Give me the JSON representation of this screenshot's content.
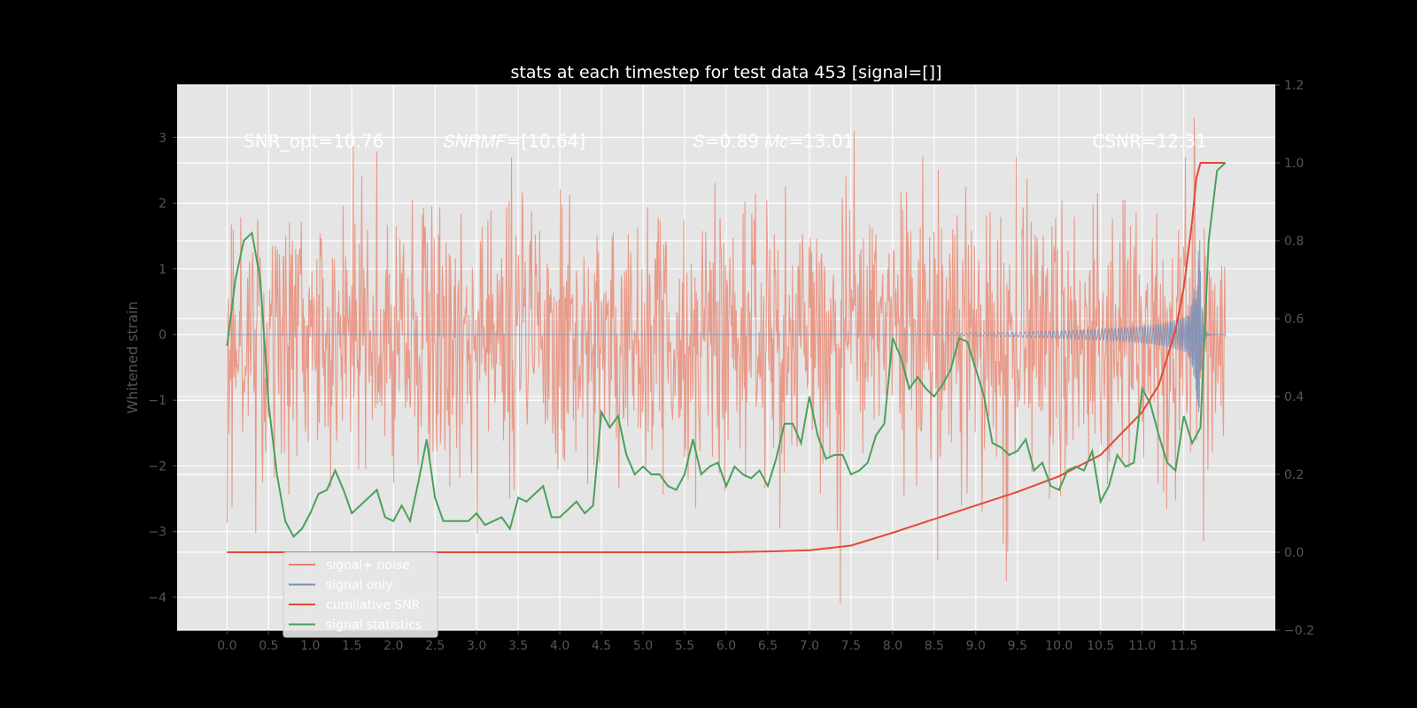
{
  "chart_data": {
    "type": "line",
    "title": "stats at each timestep for test data 453 [signal=[]]",
    "xlabel": "",
    "ylabel": "Whitened strain",
    "y2label": "",
    "xlim": [
      -0.6,
      12.6
    ],
    "ylim": [
      -4.5,
      3.8
    ],
    "y2lim": [
      -0.2,
      1.2
    ],
    "x_ticks": [
      0.0,
      0.5,
      1.0,
      1.5,
      2.0,
      2.5,
      3.0,
      3.5,
      4.0,
      4.5,
      5.0,
      5.5,
      6.0,
      6.5,
      7.0,
      7.5,
      8.0,
      8.5,
      9.0,
      9.5,
      10.0,
      10.5,
      11.0,
      11.5
    ],
    "x_tick_labels": [
      "0.0",
      "0.5",
      "1.0",
      "1.5",
      "2.0",
      "2.5",
      "3.0",
      "3.5",
      "4.0",
      "4.5",
      "5.0",
      "5.5",
      "6.0",
      "6.5",
      "7.0",
      "7.5",
      "8.0",
      "8.5",
      "9.0",
      "9.5",
      "10.0",
      "10.5",
      "11.0",
      "11.5"
    ],
    "y_ticks": [
      3,
      2,
      1,
      0,
      -1,
      -2,
      -3,
      -4
    ],
    "y_tick_labels": [
      "3",
      "2",
      "1",
      "0",
      "−1",
      "−2",
      "−3",
      "−4"
    ],
    "y2_ticks": [
      1.2,
      1.0,
      0.8,
      0.6,
      0.4,
      0.2,
      0.0,
      -0.2
    ],
    "y2_tick_labels": [
      "1.2",
      "1.0",
      "0.8",
      "0.6",
      "0.4",
      "0.2",
      "0.0",
      "−0.2"
    ],
    "grid": true,
    "legend_position": "lower-left",
    "annotations": [
      {
        "text": "SNR_opt=10.76",
        "x": 0.2,
        "y": 2.85
      },
      {
        "text": "𝑆𝑁𝑅𝑀𝐹=[10.64]",
        "x": 2.6,
        "y": 2.85
      },
      {
        "text": "𝑆=0.89   𝑀𝑐=13.01",
        "x": 5.6,
        "y": 2.85
      },
      {
        "text": "CSNR=12.31",
        "x": 10.4,
        "y": 2.85
      }
    ],
    "series": [
      {
        "name": "signal+ noise",
        "axis": "left",
        "color": "#e8806a",
        "style": "noise",
        "x_range": [
          0.0,
          12.0
        ],
        "typical_amplitude": 1.0,
        "max_value": 3.6,
        "min_value": -4.1
      },
      {
        "name": "signal only",
        "axis": "left",
        "color": "#7a8fb8",
        "style": "chirp",
        "x_range": [
          0.0,
          12.0
        ],
        "merger_time": 11.7,
        "peak_amplitude": 1.6
      },
      {
        "name": "cumilative SNR",
        "axis": "right",
        "color": "#e24a33",
        "style": "line",
        "x": [
          0.0,
          1.0,
          2.0,
          3.0,
          4.0,
          5.0,
          6.0,
          6.5,
          7.0,
          7.5,
          8.0,
          8.5,
          9.0,
          9.5,
          10.0,
          10.5,
          11.0,
          11.2,
          11.4,
          11.5,
          11.6,
          11.65,
          11.7,
          12.0
        ],
        "values": [
          0.0,
          0.0,
          0.0,
          0.0,
          0.0,
          0.0,
          0.0,
          0.002,
          0.005,
          0.017,
          0.05,
          0.085,
          0.12,
          0.155,
          0.195,
          0.25,
          0.36,
          0.43,
          0.57,
          0.68,
          0.85,
          0.96,
          1.0,
          1.0
        ]
      },
      {
        "name": "signal statistics",
        "axis": "right",
        "color": "#4aa05a",
        "style": "line",
        "x": [
          0.0,
          0.1,
          0.2,
          0.3,
          0.4,
          0.5,
          0.6,
          0.7,
          0.8,
          0.9,
          1.0,
          1.1,
          1.2,
          1.3,
          1.4,
          1.5,
          1.6,
          1.7,
          1.8,
          1.9,
          2.0,
          2.1,
          2.2,
          2.3,
          2.4,
          2.5,
          2.6,
          2.7,
          2.8,
          2.9,
          3.0,
          3.1,
          3.2,
          3.3,
          3.4,
          3.5,
          3.6,
          3.7,
          3.8,
          3.9,
          4.0,
          4.1,
          4.2,
          4.3,
          4.4,
          4.5,
          4.6,
          4.7,
          4.8,
          4.9,
          5.0,
          5.1,
          5.2,
          5.3,
          5.4,
          5.5,
          5.6,
          5.7,
          5.8,
          5.9,
          6.0,
          6.1,
          6.2,
          6.3,
          6.4,
          6.5,
          6.6,
          6.7,
          6.8,
          6.9,
          7.0,
          7.1,
          7.2,
          7.3,
          7.4,
          7.5,
          7.6,
          7.7,
          7.8,
          7.9,
          8.0,
          8.1,
          8.2,
          8.3,
          8.4,
          8.5,
          8.6,
          8.7,
          8.8,
          8.9,
          9.0,
          9.1,
          9.2,
          9.3,
          9.4,
          9.5,
          9.6,
          9.7,
          9.8,
          9.9,
          10.0,
          10.1,
          10.2,
          10.3,
          10.4,
          10.5,
          10.6,
          10.7,
          10.8,
          10.9,
          11.0,
          11.1,
          11.2,
          11.3,
          11.4,
          11.5,
          11.6,
          11.7,
          11.8,
          11.9,
          12.0
        ],
        "values": [
          0.53,
          0.7,
          0.8,
          0.82,
          0.7,
          0.38,
          0.2,
          0.08,
          0.04,
          0.06,
          0.1,
          0.15,
          0.16,
          0.21,
          0.16,
          0.1,
          0.12,
          0.14,
          0.16,
          0.09,
          0.08,
          0.12,
          0.08,
          0.18,
          0.29,
          0.14,
          0.08,
          0.08,
          0.08,
          0.08,
          0.1,
          0.07,
          0.08,
          0.09,
          0.06,
          0.14,
          0.13,
          0.15,
          0.17,
          0.09,
          0.09,
          0.11,
          0.13,
          0.1,
          0.12,
          0.36,
          0.32,
          0.35,
          0.25,
          0.2,
          0.22,
          0.2,
          0.2,
          0.17,
          0.16,
          0.2,
          0.29,
          0.2,
          0.22,
          0.23,
          0.17,
          0.22,
          0.2,
          0.19,
          0.21,
          0.17,
          0.24,
          0.33,
          0.33,
          0.28,
          0.4,
          0.3,
          0.24,
          0.25,
          0.25,
          0.2,
          0.21,
          0.23,
          0.3,
          0.33,
          0.55,
          0.5,
          0.42,
          0.45,
          0.42,
          0.4,
          0.43,
          0.47,
          0.55,
          0.54,
          0.47,
          0.4,
          0.28,
          0.27,
          0.25,
          0.26,
          0.29,
          0.21,
          0.23,
          0.17,
          0.16,
          0.21,
          0.22,
          0.21,
          0.26,
          0.13,
          0.17,
          0.25,
          0.22,
          0.23,
          0.42,
          0.38,
          0.3,
          0.23,
          0.21,
          0.35,
          0.28,
          0.32,
          0.8,
          0.98,
          1.0
        ]
      }
    ]
  }
}
